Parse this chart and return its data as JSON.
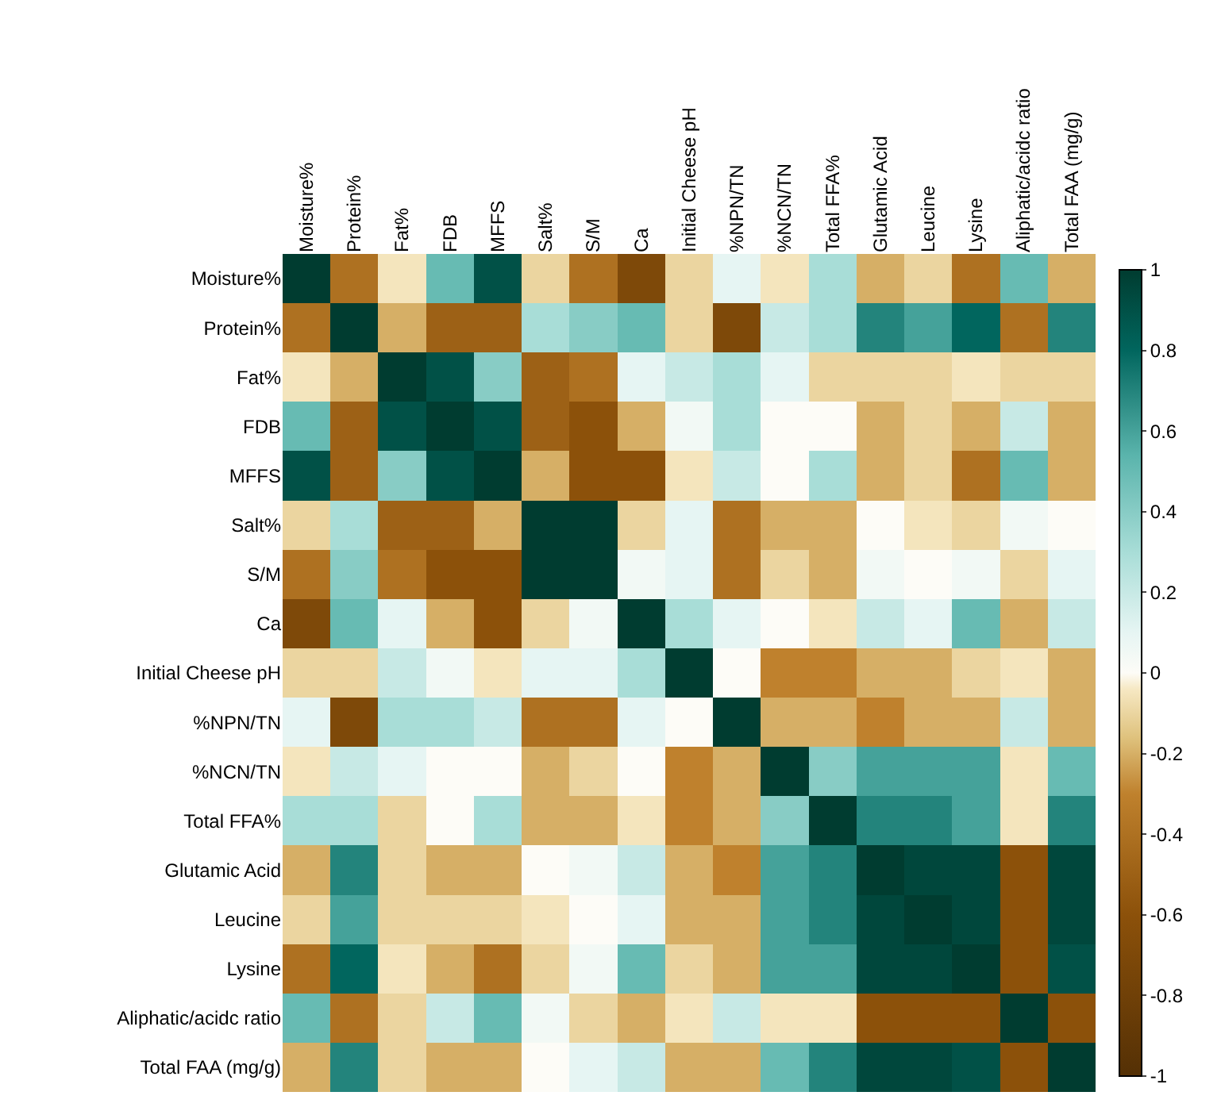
{
  "chart_data": {
    "type": "heatmap",
    "categories": [
      "Moisture%",
      "Protein%",
      "Fat%",
      "FDB",
      "MFFS",
      "Salt%",
      "S/M",
      "Ca",
      "Initial Cheese pH",
      "%NPN/TN",
      "%NCN/TN",
      "Total FFA%",
      "Glutamic Acid",
      "Leucine",
      "Lysine",
      "Aliphatic/acidc ratio",
      "Total FAA (mg/g)"
    ],
    "y_categories": [
      "Moisture%",
      "Protein%",
      "Fat%",
      "FDB",
      "MFFS",
      "Salt%",
      "S/M",
      "Ca",
      "Initial Cheese pH",
      "%NPN/TN",
      "%NCN/TN",
      "Total FFA%",
      "Glutamic Acid",
      "Leucine",
      "Lysine",
      "Aliphatic/acidc ratio",
      "Total FAA (mg/g)"
    ],
    "cells": [
      [
        1,
        -0.4,
        -0.05,
        0.5,
        0.9,
        -0.1,
        -0.4,
        -0.7,
        -0.1,
        0.1,
        -0.05,
        0.3,
        -0.2,
        -0.1,
        -0.4,
        0.5,
        -0.2
      ],
      [
        -0.4,
        1,
        -0.2,
        -0.5,
        -0.5,
        0.3,
        0.4,
        0.5,
        -0.1,
        -0.7,
        0.2,
        0.3,
        0.7,
        0.6,
        0.8,
        -0.4,
        0.7
      ],
      [
        -0.05,
        -0.2,
        1,
        0.9,
        0.4,
        -0.5,
        -0.4,
        0.1,
        0.2,
        0.3,
        0.1,
        -0.1,
        -0.1,
        -0.1,
        -0.05,
        -0.1,
        -0.1
      ],
      [
        0.5,
        -0.5,
        0.9,
        1,
        0.9,
        -0.5,
        -0.6,
        -0.2,
        0.05,
        0.3,
        0,
        0,
        -0.2,
        -0.1,
        -0.2,
        0.2,
        -0.2
      ],
      [
        0.9,
        -0.5,
        0.4,
        0.9,
        1,
        -0.2,
        -0.6,
        -0.6,
        -0.05,
        0.2,
        0,
        0.3,
        -0.2,
        -0.1,
        -0.4,
        0.5,
        -0.2
      ],
      [
        -0.1,
        0.3,
        -0.5,
        -0.5,
        -0.2,
        1,
        1,
        -0.1,
        0.1,
        -0.4,
        -0.2,
        -0.2,
        0,
        -0.05,
        -0.1,
        0.05,
        0
      ],
      [
        -0.4,
        0.4,
        -0.4,
        -0.6,
        -0.6,
        1,
        1,
        0.05,
        0.1,
        -0.4,
        -0.1,
        -0.2,
        0.05,
        0,
        0.05,
        -0.1,
        0.1
      ],
      [
        -0.7,
        0.5,
        0.1,
        -0.2,
        -0.6,
        -0.1,
        0.05,
        1,
        0.3,
        0.1,
        0,
        -0.05,
        0.2,
        0.1,
        0.5,
        -0.2,
        0.2
      ],
      [
        -0.1,
        -0.1,
        0.2,
        0.05,
        -0.05,
        0.1,
        0.1,
        0.3,
        1,
        0,
        -0.3,
        -0.3,
        -0.2,
        -0.2,
        -0.1,
        -0.05,
        -0.2
      ],
      [
        0.1,
        -0.7,
        0.3,
        0.3,
        0.2,
        -0.4,
        -0.4,
        0.1,
        0,
        1,
        -0.2,
        -0.2,
        -0.3,
        -0.2,
        -0.2,
        0.2,
        -0.2
      ],
      [
        -0.05,
        0.2,
        0.1,
        0,
        0,
        -0.2,
        -0.1,
        0,
        -0.3,
        -0.2,
        1,
        0.4,
        0.6,
        0.6,
        0.6,
        -0.05,
        0.5
      ],
      [
        0.3,
        0.3,
        -0.1,
        0,
        0.3,
        -0.2,
        -0.2,
        -0.05,
        -0.3,
        -0.2,
        0.4,
        1,
        0.7,
        0.7,
        0.6,
        -0.05,
        0.7
      ],
      [
        -0.2,
        0.7,
        -0.1,
        -0.2,
        -0.2,
        0,
        0.05,
        0.2,
        -0.2,
        -0.3,
        0.6,
        0.7,
        1,
        0.95,
        0.95,
        -0.6,
        0.95
      ],
      [
        -0.1,
        0.6,
        -0.1,
        -0.1,
        -0.1,
        -0.05,
        0,
        0.1,
        -0.2,
        -0.2,
        0.6,
        0.7,
        0.95,
        1,
        0.95,
        -0.6,
        0.95
      ],
      [
        -0.4,
        0.8,
        -0.05,
        -0.2,
        -0.4,
        -0.1,
        0.05,
        0.5,
        -0.1,
        -0.2,
        0.6,
        0.6,
        0.95,
        0.95,
        1,
        -0.6,
        0.9
      ],
      [
        0.5,
        -0.4,
        -0.1,
        0.2,
        0.5,
        0.05,
        -0.1,
        -0.2,
        -0.05,
        0.2,
        -0.05,
        -0.05,
        -0.6,
        -0.6,
        -0.6,
        1,
        -0.6
      ],
      [
        -0.2,
        0.7,
        -0.1,
        -0.2,
        -0.2,
        0,
        0.1,
        0.2,
        -0.2,
        -0.2,
        0.5,
        0.7,
        0.95,
        0.95,
        0.9,
        -0.6,
        1
      ]
    ],
    "clim": [
      -1,
      1
    ],
    "cticks": [
      1,
      0.8,
      0.6,
      0.4,
      0.2,
      0,
      -0.2,
      -0.4,
      -0.6,
      -0.8,
      -1
    ]
  }
}
